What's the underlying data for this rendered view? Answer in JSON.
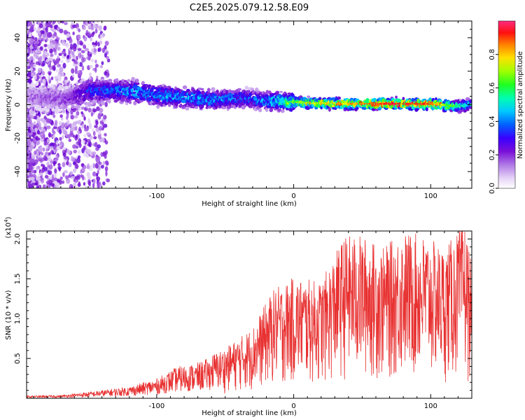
{
  "title": "C2E5.2025.079.12.58.E09",
  "chart_data": [
    {
      "type": "heatmap",
      "xlabel": "Height of straight line (km)",
      "ylabel": "Frequency (Hz)",
      "xlim": [
        -195,
        130
      ],
      "ylim": [
        -50,
        50
      ],
      "xticks": [
        -100,
        0,
        100
      ],
      "yticks": [
        -40,
        -20,
        0,
        20,
        40
      ],
      "colorbar": {
        "label": "Normalized spectral amplitude",
        "range": [
          0,
          1
        ],
        "ticks": [
          "0.0",
          "0.2",
          "0.4",
          "0.6",
          "0.8"
        ],
        "colormap": [
          "#ffffff",
          "#d9c2f2",
          "#9b4ee0",
          "#6a00d0",
          "#2a00ff",
          "#0080ff",
          "#00e0ff",
          "#00ff80",
          "#40ff00",
          "#ffff00",
          "#ff8000",
          "#ff0000",
          "#ff2070"
        ]
      },
      "ridge": {
        "description_points": [
          {
            "x": -195,
            "y": 5,
            "amp": 0.15
          },
          {
            "x": -165,
            "y": 3,
            "amp": 0.2
          },
          {
            "x": -150,
            "y": 8,
            "amp": 0.35
          },
          {
            "x": -120,
            "y": 8,
            "amp": 0.45
          },
          {
            "x": -90,
            "y": 5,
            "amp": 0.45
          },
          {
            "x": -60,
            "y": 3,
            "amp": 0.45
          },
          {
            "x": -35,
            "y": 4,
            "amp": 0.4
          },
          {
            "x": -20,
            "y": 2,
            "amp": 0.45
          },
          {
            "x": -10,
            "y": 2,
            "amp": 0.6
          },
          {
            "x": 10,
            "y": 1,
            "amp": 0.75
          },
          {
            "x": 40,
            "y": 0.5,
            "amp": 0.8
          },
          {
            "x": 70,
            "y": 0.5,
            "amp": 0.95
          },
          {
            "x": 100,
            "y": 0.5,
            "amp": 0.9
          },
          {
            "x": 120,
            "y": -1,
            "amp": 0.6
          },
          {
            "x": 130,
            "y": 0,
            "amp": 0.5
          }
        ]
      }
    },
    {
      "type": "line",
      "xlabel": "Height of straight line (km)",
      "ylabel": "SNR (10 * v/v)",
      "yscale_label": "(x10",
      "yscale_exp": "4",
      "yscale_close": ")",
      "xlim": [
        -195,
        130
      ],
      "ylim": [
        0,
        2.1
      ],
      "xticks": [
        -100,
        0,
        100
      ],
      "yticks": [
        0.5,
        1.0,
        1.5,
        2.0
      ],
      "ytick_labels": [
        "0.5",
        "1.0",
        "1.5",
        "2.0"
      ],
      "color": "#e83030",
      "envelope": [
        {
          "x": -195,
          "y": 0.03
        },
        {
          "x": -170,
          "y": 0.04
        },
        {
          "x": -150,
          "y": 0.08
        },
        {
          "x": -120,
          "y": 0.15
        },
        {
          "x": -100,
          "y": 0.25
        },
        {
          "x": -85,
          "y": 0.4
        },
        {
          "x": -70,
          "y": 0.45
        },
        {
          "x": -50,
          "y": 0.6
        },
        {
          "x": -30,
          "y": 0.85
        },
        {
          "x": -15,
          "y": 1.3
        },
        {
          "x": 0,
          "y": 1.45
        },
        {
          "x": 20,
          "y": 1.4
        },
        {
          "x": 37,
          "y": 1.95
        },
        {
          "x": 50,
          "y": 1.95
        },
        {
          "x": 65,
          "y": 1.8
        },
        {
          "x": 80,
          "y": 2.0
        },
        {
          "x": 95,
          "y": 1.95
        },
        {
          "x": 110,
          "y": 1.8
        },
        {
          "x": 125,
          "y": 2.1
        },
        {
          "x": 130,
          "y": 1.6
        }
      ]
    }
  ]
}
